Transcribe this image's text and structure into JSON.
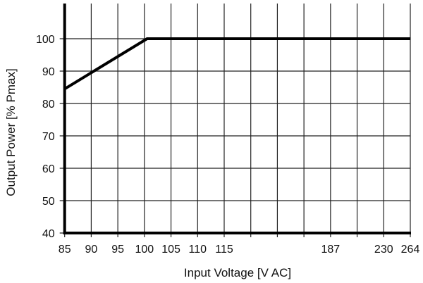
{
  "chart_data": {
    "type": "line",
    "title": "",
    "xlabel": "Input Voltage [V AC]",
    "ylabel": "Output Power [% Pmax]",
    "x_ticks": [
      "85",
      "90",
      "95",
      "100",
      "105",
      "110",
      "115",
      "",
      "",
      "",
      "187",
      "",
      "230",
      "264"
    ],
    "x_scale": "categorical gridlines; 85–115 linear in steps of 5, then 187, 230, 264",
    "y_ticks": [
      40,
      50,
      60,
      70,
      80,
      90,
      100
    ],
    "ylim": [
      40,
      110
    ],
    "grid": true,
    "series": [
      {
        "points": [
          [
            85,
            84.5
          ],
          [
            100.5,
            100
          ],
          [
            264,
            100
          ]
        ],
        "color": "#000000"
      }
    ]
  }
}
